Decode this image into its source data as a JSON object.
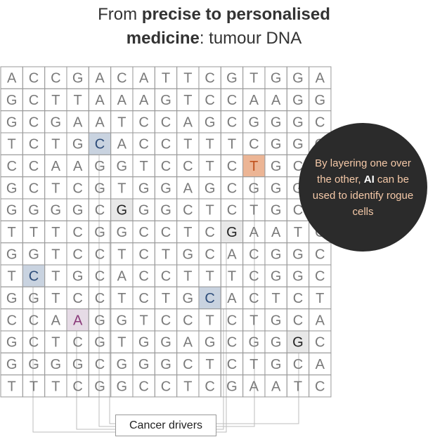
{
  "title": {
    "part1": "From ",
    "bold1": "precise to personalised",
    "bold2": "medicine",
    "part2": ": tumour DNA"
  },
  "grid": {
    "rows": [
      "ACCGACATTCGTGGA",
      "GCTTAAAGTCCAAGG",
      "GCGAATCCAGCGGGC",
      "TCTGCACCTTTCGGG",
      "CCAAGGTCCTCTGCC",
      "GCTCGTGGAGCGGGG",
      "GGGGCGGGCTCTGCC",
      "TTTCGGCCTCGAATC",
      "GGTCCTCTGCACGGC",
      "TCTGCACCTTTCGGC",
      "GGTCCTCTGCACTCT",
      "CCAAGGTCCTCTGCA",
      "GCTCGTGGAGCGGGC",
      "GGGGCGGGCTCTGCA",
      "TTTCGGCCTCGAATC"
    ],
    "highlights": [
      {
        "row": 3,
        "col": 4,
        "color": "#c9d3e0",
        "text_color": "#2e4d7a"
      },
      {
        "row": 4,
        "col": 11,
        "color": "#ecb595",
        "text_color": "#c0521e"
      },
      {
        "row": 6,
        "col": 5,
        "color": "#e8e8e8",
        "text_color": "#222222"
      },
      {
        "row": 7,
        "col": 10,
        "color": "#e8e8e8",
        "text_color": "#222222"
      },
      {
        "row": 9,
        "col": 1,
        "color": "#c9d3e0",
        "text_color": "#2e4d7a"
      },
      {
        "row": 10,
        "col": 9,
        "color": "#c9d3e0",
        "text_color": "#2e4d7a"
      },
      {
        "row": 11,
        "col": 3,
        "color": "#e6dbe6",
        "text_color": "#8a3a7a"
      },
      {
        "row": 12,
        "col": 13,
        "color": "#e8e8e8",
        "text_color": "#222222"
      }
    ],
    "line_color": "#999999",
    "letter_color": "#7a7a7a"
  },
  "callout": {
    "text_before": "By layering one over the other, ",
    "bold": "AI",
    "text_after": " can be used to identify rogue cells"
  },
  "label": "Cancer drivers"
}
